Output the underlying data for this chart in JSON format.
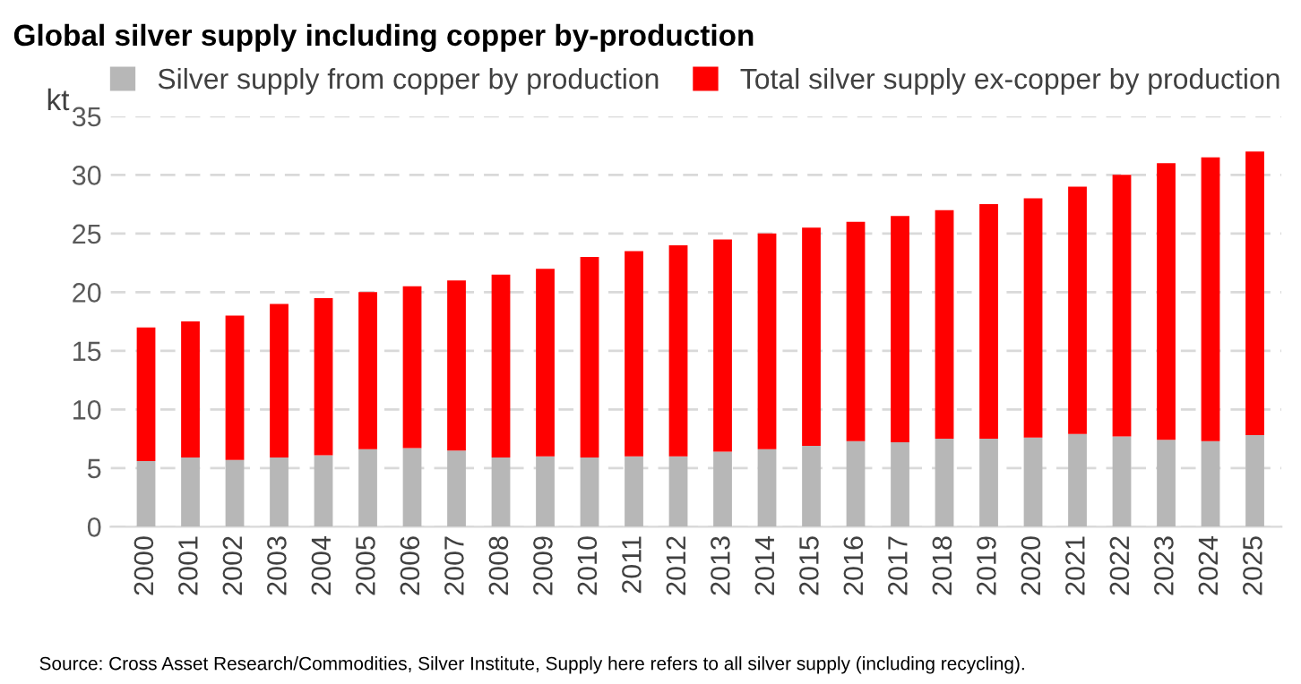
{
  "chart_data": {
    "type": "bar",
    "title": "Global silver supply including copper by-production",
    "ylabel": "kt",
    "categories": [
      "2000",
      "2001",
      "2002",
      "2003",
      "2004",
      "2005",
      "2006",
      "2007",
      "2008",
      "2009",
      "2010",
      "2011",
      "2012",
      "2013",
      "2014",
      "2015",
      "2016",
      "2017",
      "2018",
      "2019",
      "2020",
      "2021",
      "2022",
      "2023",
      "2024",
      "2025"
    ],
    "stacked": true,
    "series": [
      {
        "name": "Silver supply from copper by production",
        "color": "#b7b7b7",
        "values": [
          5.6,
          5.9,
          5.7,
          5.9,
          6.1,
          6.6,
          6.7,
          6.5,
          5.9,
          6.0,
          5.9,
          6.0,
          6.0,
          6.4,
          6.6,
          6.9,
          7.3,
          7.2,
          7.5,
          7.5,
          7.6,
          7.9,
          7.7,
          7.4,
          7.3,
          7.8
        ]
      },
      {
        "name": "Total silver supply ex-copper by production",
        "color": "#ff0000",
        "values": [
          11.4,
          11.6,
          12.3,
          13.1,
          13.4,
          13.4,
          13.8,
          14.5,
          15.6,
          16.0,
          17.1,
          17.5,
          18.0,
          18.1,
          18.4,
          18.6,
          18.7,
          19.3,
          19.5,
          20.0,
          20.4,
          21.1,
          22.3,
          23.6,
          24.2,
          24.2
        ]
      }
    ],
    "ylim": [
      0,
      35
    ],
    "yticks": [
      0,
      5,
      10,
      15,
      20,
      25,
      30,
      35
    ],
    "grid": "y",
    "legend": "top",
    "annotations": [
      "Source: Cross Asset Research/Commodities, Silver Institute, Supply here refers to all silver supply (including recycling)."
    ]
  }
}
